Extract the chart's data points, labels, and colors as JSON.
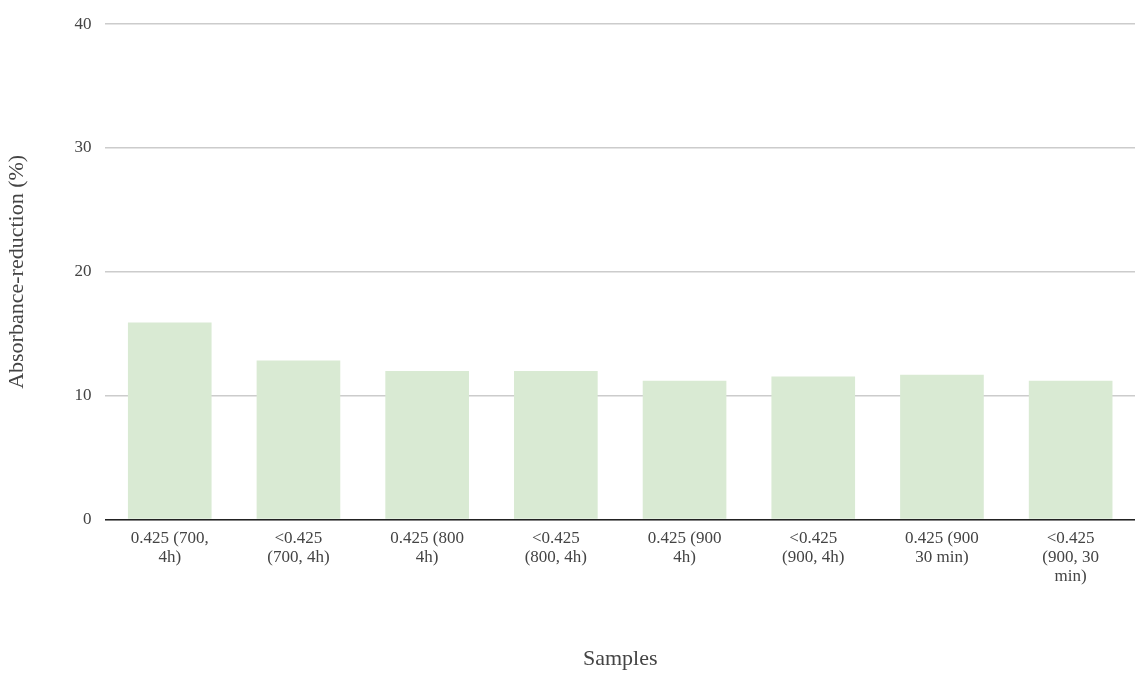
{
  "chart_data": {
    "type": "bar",
    "xlabel": "Samples",
    "ylabel": "Absorbance-reduction (%)",
    "categories": [
      "0.425 (700, 4h)",
      "<0.425 (700, 4h)",
      "0.425 (800 4h)",
      "<0.425 (800, 4h)",
      "0.425 (900 4h)",
      "<0.425 (900, 4h)",
      "0.425 (900 30 min)",
      "<0.425 (900, 30 min)"
    ],
    "values": [
      15.9,
      12.85,
      12.0,
      12.0,
      11.2,
      11.55,
      11.7,
      11.2
    ],
    "color": "#d9ead3",
    "ylim": [
      0,
      40
    ],
    "yticks": [
      0,
      10,
      20,
      30,
      40
    ],
    "grid": "y",
    "legend": false
  }
}
